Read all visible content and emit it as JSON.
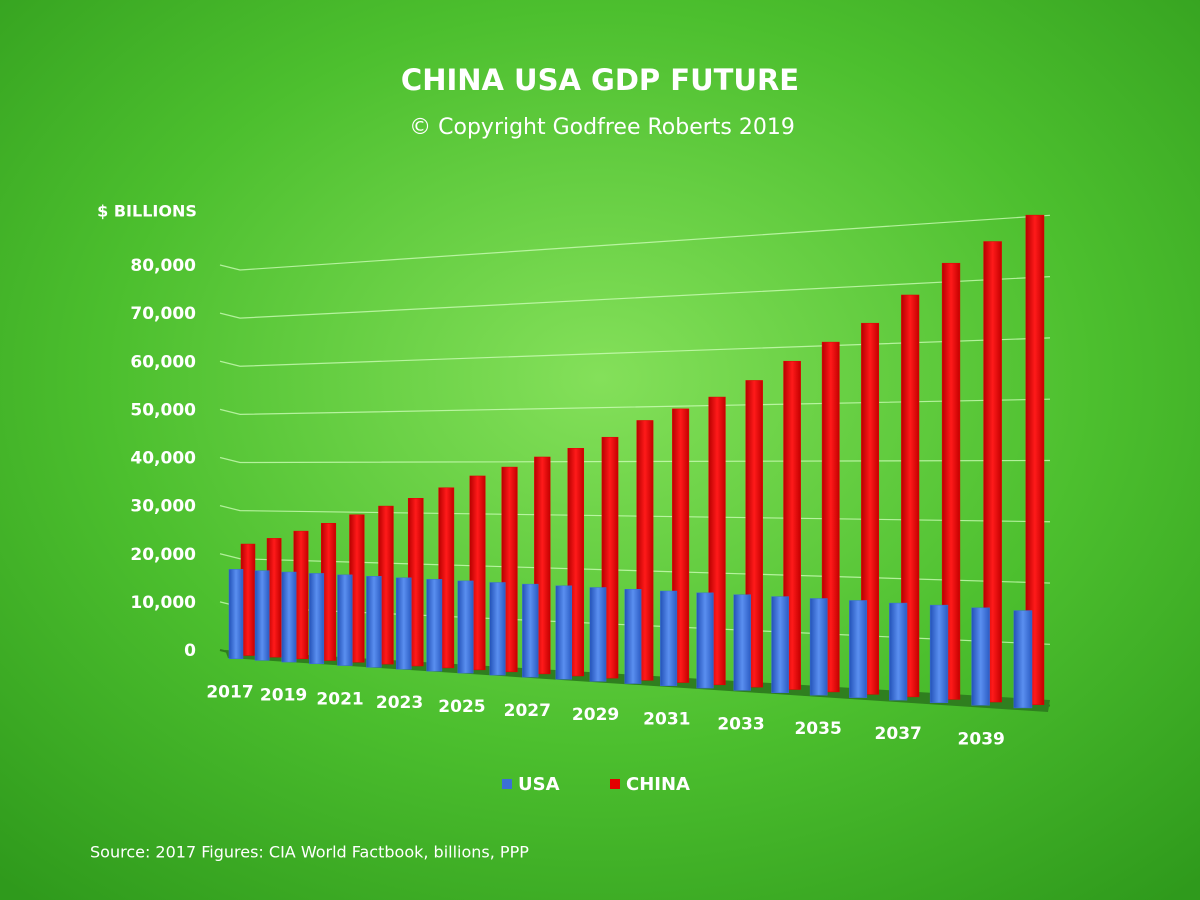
{
  "chart_data": {
    "type": "bar",
    "title": "CHINA USA GDP FUTURE",
    "subtitle": "© Copyright Godfree Roberts 2019",
    "y_axis_label": "$ BILLIONS",
    "source": "Source: 2017 Figures: CIA World Factbook, billions, PPP",
    "categories": [
      "2017",
      null,
      "2019",
      null,
      "2021",
      null,
      "2023",
      null,
      "2025",
      null,
      "2027",
      null,
      "2029",
      null,
      "2031",
      null,
      "2033",
      null,
      "2035",
      null,
      "2037",
      null,
      "2039",
      null
    ],
    "series": [
      {
        "name": "USA",
        "color": "#3b6fd6",
        "values": [
          18600,
          18500,
          18400,
          18300,
          18200,
          18100,
          18000,
          17900,
          17800,
          17700,
          17600,
          17500,
          17400,
          17300,
          17200,
          17100,
          17000,
          16900,
          16800,
          16700,
          16500,
          16400,
          16200,
          16000
        ]
      },
      {
        "name": "CHINA",
        "color": "#e30000",
        "values": [
          23100,
          24400,
          26000,
          27700,
          29500,
          31300,
          32900,
          35000,
          37300,
          39000,
          40900,
          42500,
          44500,
          47500,
          49500,
          51500,
          54300,
          57500,
          60600,
          63600,
          68100,
          73100,
          76300,
          80200
        ]
      }
    ],
    "ylim": [
      0,
      82000
    ],
    "yticks": [
      0,
      {
        "value": 10000,
        "label": "10,000"
      },
      {
        "value": 20000,
        "label": "20,000"
      },
      {
        "value": 30000,
        "label": "30,000"
      },
      {
        "value": 40000,
        "label": "40,000"
      },
      {
        "value": 50000,
        "label": "50,000"
      },
      {
        "value": 60000,
        "label": "60,000"
      },
      {
        "value": 70000,
        "label": "70,000"
      },
      {
        "value": 80000,
        "label": "80,000"
      }
    ],
    "grid": true
  }
}
